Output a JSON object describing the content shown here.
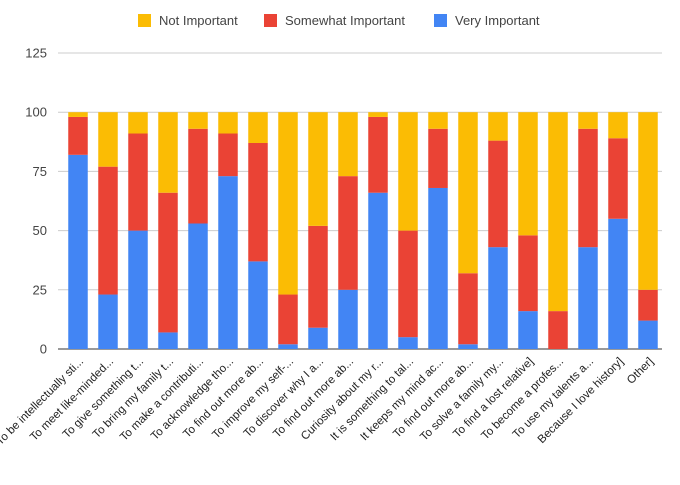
{
  "chart_data": {
    "type": "bar",
    "stacked": true,
    "legend_position": "top",
    "grid": true,
    "ylim": [
      0,
      125
    ],
    "yticks": [
      "0",
      "25",
      "50",
      "75",
      "100",
      "125"
    ],
    "categories": [
      "To be intellectually sti...",
      "To meet like-minded...",
      "To give something t...",
      "To bring my family t...",
      "To make a contributi...",
      "To acknowledge tho...",
      "To find out more ab...",
      "To improve my self-...",
      "To discover why I a...",
      "To find out more ab...",
      "Curiosity about my r...",
      "It is something to tal...",
      "It keeps my mind ac...",
      "To find out more ab...",
      "To solve a family my...",
      "To find a lost relative]",
      "To become a profes...",
      "To use my talents a...",
      "Because I love history]",
      "Other]"
    ],
    "series": [
      {
        "name": "Very Important",
        "color": "#4285f4",
        "values": [
          82,
          23,
          50,
          7,
          53,
          73,
          37,
          2,
          9,
          25,
          66,
          5,
          68,
          2,
          43,
          16,
          0,
          43,
          55,
          12
        ]
      },
      {
        "name": "Somewhat Important",
        "color": "#ea4335",
        "values": [
          16,
          54,
          41,
          59,
          40,
          18,
          50,
          21,
          43,
          48,
          32,
          45,
          25,
          30,
          45,
          32,
          16,
          50,
          34,
          13
        ]
      },
      {
        "name": "Not Important",
        "color": "#fbbc04",
        "values": [
          2,
          23,
          9,
          34,
          7,
          9,
          13,
          77,
          48,
          27,
          2,
          50,
          7,
          68,
          12,
          52,
          84,
          7,
          11,
          75
        ]
      }
    ],
    "legend_order": [
      "Not Important",
      "Somewhat Important",
      "Very Important"
    ]
  }
}
